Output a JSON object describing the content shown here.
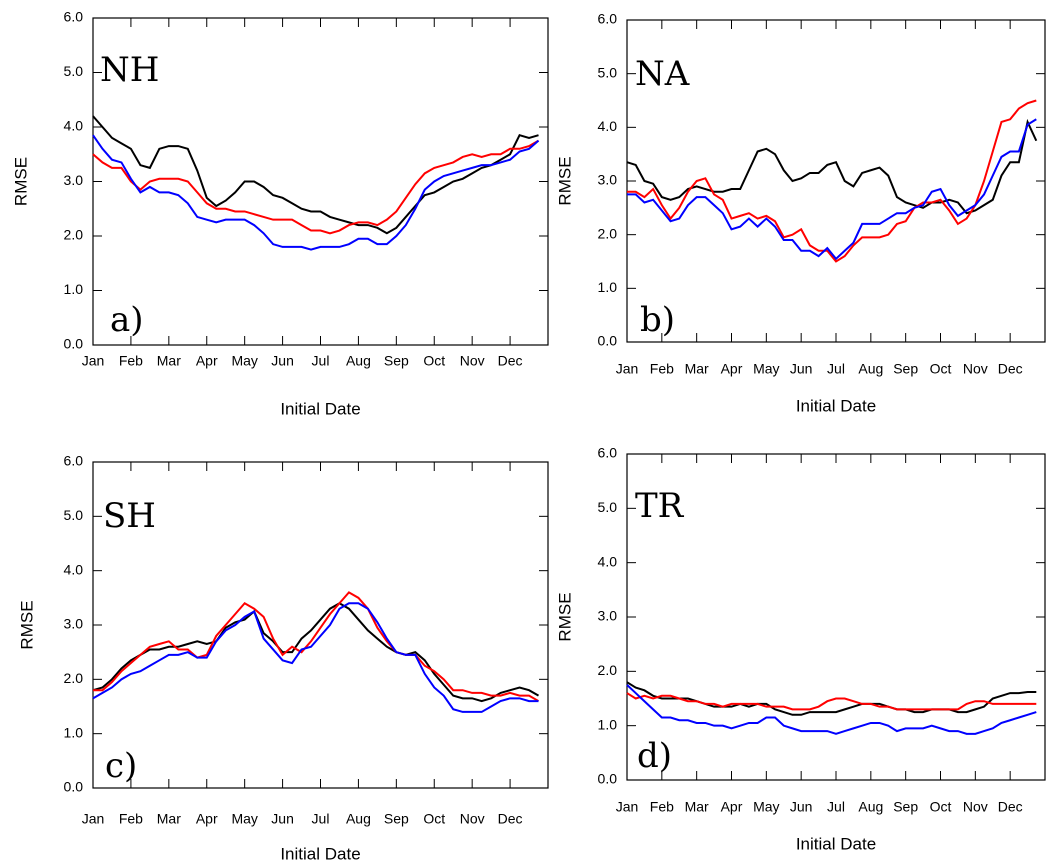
{
  "chart_data": [
    {
      "type": "line",
      "title": "NH",
      "panel_label": "a)",
      "ylabel": "RMSE",
      "xlabel": "Initial Date",
      "categories": [
        "Jan",
        null,
        null,
        null,
        "Feb",
        null,
        null,
        null,
        "Mar",
        null,
        null,
        null,
        "Apr",
        null,
        null,
        null,
        "May",
        null,
        null,
        null,
        "Jun",
        null,
        null,
        null,
        "Jul",
        null,
        null,
        null,
        "Aug",
        null,
        null,
        null,
        "Sep",
        null,
        null,
        null,
        "Oct",
        null,
        null,
        null,
        "Nov",
        null,
        null,
        null,
        "Dec",
        null,
        null,
        null
      ],
      "ylim": [
        0,
        6
      ],
      "yticks": [
        {
          "value": 0,
          "label": "0.0"
        },
        {
          "value": 1,
          "label": "1.0"
        },
        {
          "value": 2,
          "label": "2.0"
        },
        {
          "value": 3,
          "label": "3.0"
        },
        {
          "value": 4,
          "label": "4.0"
        },
        {
          "value": 5,
          "label": "5.0"
        },
        {
          "value": 6,
          "label": "6.0"
        }
      ],
      "series": [
        {
          "color": "#000000",
          "values": [
            4.2,
            4.0,
            3.8,
            3.7,
            3.6,
            3.3,
            3.25,
            3.6,
            3.65,
            3.65,
            3.6,
            3.2,
            2.7,
            2.55,
            2.65,
            2.8,
            3.0,
            3.0,
            2.9,
            2.75,
            2.7,
            2.6,
            2.5,
            2.45,
            2.45,
            2.35,
            2.3,
            2.25,
            2.2,
            2.2,
            2.15,
            2.05,
            2.15,
            2.35,
            2.55,
            2.75,
            2.8,
            2.9,
            3.0,
            3.05,
            3.15,
            3.25,
            3.3,
            3.4,
            3.5,
            3.85,
            3.8,
            3.85
          ]
        },
        {
          "color": "#ff0000",
          "values": [
            3.5,
            3.35,
            3.25,
            3.25,
            3.0,
            2.85,
            3.0,
            3.05,
            3.05,
            3.05,
            3.0,
            2.8,
            2.6,
            2.5,
            2.5,
            2.45,
            2.45,
            2.4,
            2.35,
            2.3,
            2.3,
            2.3,
            2.2,
            2.1,
            2.1,
            2.05,
            2.1,
            2.2,
            2.25,
            2.25,
            2.2,
            2.3,
            2.45,
            2.7,
            2.95,
            3.15,
            3.25,
            3.3,
            3.35,
            3.45,
            3.5,
            3.45,
            3.5,
            3.5,
            3.6,
            3.6,
            3.65,
            3.75
          ]
        },
        {
          "color": "#0000ff",
          "values": [
            3.85,
            3.6,
            3.4,
            3.35,
            3.05,
            2.8,
            2.9,
            2.8,
            2.8,
            2.75,
            2.6,
            2.35,
            2.3,
            2.25,
            2.3,
            2.3,
            2.3,
            2.2,
            2.05,
            1.85,
            1.8,
            1.8,
            1.8,
            1.75,
            1.8,
            1.8,
            1.8,
            1.85,
            1.95,
            1.95,
            1.85,
            1.85,
            2.0,
            2.2,
            2.5,
            2.85,
            3.0,
            3.1,
            3.15,
            3.2,
            3.25,
            3.3,
            3.3,
            3.35,
            3.4,
            3.55,
            3.6,
            3.75
          ]
        }
      ]
    },
    {
      "type": "line",
      "title": "NA",
      "panel_label": "b)",
      "ylabel": "RMSE",
      "xlabel": "Initial Date",
      "categories": [
        "Jan",
        null,
        null,
        null,
        "Feb",
        null,
        null,
        null,
        "Mar",
        null,
        null,
        null,
        "Apr",
        null,
        null,
        null,
        "May",
        null,
        null,
        null,
        "Jun",
        null,
        null,
        null,
        "Jul",
        null,
        null,
        null,
        "Aug",
        null,
        null,
        null,
        "Sep",
        null,
        null,
        null,
        "Oct",
        null,
        null,
        null,
        "Nov",
        null,
        null,
        null,
        "Dec",
        null,
        null,
        null
      ],
      "ylim": [
        0,
        6
      ],
      "yticks": [
        {
          "value": 0,
          "label": "0.0"
        },
        {
          "value": 1,
          "label": "1.0"
        },
        {
          "value": 2,
          "label": "2.0"
        },
        {
          "value": 3,
          "label": "3.0"
        },
        {
          "value": 4,
          "label": "4.0"
        },
        {
          "value": 5,
          "label": "5.0"
        },
        {
          "value": 6,
          "label": "6.0"
        }
      ],
      "series": [
        {
          "color": "#000000",
          "values": [
            3.35,
            3.3,
            3.0,
            2.95,
            2.7,
            2.65,
            2.7,
            2.85,
            2.9,
            2.85,
            2.8,
            2.8,
            2.85,
            2.85,
            3.2,
            3.55,
            3.6,
            3.5,
            3.2,
            3.0,
            3.05,
            3.15,
            3.15,
            3.3,
            3.35,
            3.0,
            2.9,
            3.15,
            3.2,
            3.25,
            3.1,
            2.7,
            2.6,
            2.55,
            2.5,
            2.6,
            2.6,
            2.65,
            2.6,
            2.4,
            2.45,
            2.55,
            2.65,
            3.1,
            3.35,
            3.35,
            4.1,
            3.75
          ]
        },
        {
          "color": "#ff0000",
          "values": [
            2.8,
            2.8,
            2.7,
            2.85,
            2.55,
            2.3,
            2.5,
            2.8,
            3.0,
            3.05,
            2.75,
            2.65,
            2.3,
            2.35,
            2.4,
            2.3,
            2.35,
            2.25,
            1.95,
            2.0,
            2.1,
            1.8,
            1.7,
            1.7,
            1.5,
            1.6,
            1.8,
            1.95,
            1.95,
            1.95,
            2.0,
            2.2,
            2.25,
            2.5,
            2.6,
            2.6,
            2.65,
            2.45,
            2.2,
            2.3,
            2.55,
            3.0,
            3.55,
            4.1,
            4.15,
            4.35,
            4.45,
            4.5
          ]
        },
        {
          "color": "#0000ff",
          "values": [
            2.75,
            2.75,
            2.6,
            2.65,
            2.45,
            2.25,
            2.3,
            2.55,
            2.7,
            2.7,
            2.55,
            2.4,
            2.1,
            2.15,
            2.3,
            2.15,
            2.3,
            2.15,
            1.9,
            1.9,
            1.7,
            1.7,
            1.6,
            1.75,
            1.55,
            1.7,
            1.85,
            2.2,
            2.2,
            2.2,
            2.3,
            2.4,
            2.4,
            2.5,
            2.55,
            2.8,
            2.85,
            2.55,
            2.35,
            2.45,
            2.55,
            2.75,
            3.1,
            3.45,
            3.55,
            3.55,
            4.05,
            4.15
          ]
        }
      ]
    },
    {
      "type": "line",
      "title": "SH",
      "panel_label": "c)",
      "ylabel": "RMSE",
      "xlabel": "Initial Date",
      "categories": [
        "Jan",
        null,
        null,
        null,
        "Feb",
        null,
        null,
        null,
        "Mar",
        null,
        null,
        null,
        "Apr",
        null,
        null,
        null,
        "May",
        null,
        null,
        null,
        "Jun",
        null,
        null,
        null,
        "Jul",
        null,
        null,
        null,
        "Aug",
        null,
        null,
        null,
        "Sep",
        null,
        null,
        null,
        "Oct",
        null,
        null,
        null,
        "Nov",
        null,
        null,
        null,
        "Dec",
        null,
        null,
        null
      ],
      "ylim": [
        0,
        6
      ],
      "yticks": [
        {
          "value": 0,
          "label": "0.0"
        },
        {
          "value": 1,
          "label": "1.0"
        },
        {
          "value": 2,
          "label": "2.0"
        },
        {
          "value": 3,
          "label": "3.0"
        },
        {
          "value": 4,
          "label": "4.0"
        },
        {
          "value": 5,
          "label": "5.0"
        },
        {
          "value": 6,
          "label": "6.0"
        }
      ],
      "series": [
        {
          "color": "#000000",
          "values": [
            1.8,
            1.85,
            2.0,
            2.2,
            2.35,
            2.45,
            2.55,
            2.55,
            2.6,
            2.6,
            2.65,
            2.7,
            2.65,
            2.7,
            2.95,
            3.05,
            3.1,
            3.25,
            2.85,
            2.7,
            2.5,
            2.5,
            2.75,
            2.9,
            3.1,
            3.3,
            3.4,
            3.3,
            3.1,
            2.9,
            2.75,
            2.6,
            2.5,
            2.45,
            2.5,
            2.35,
            2.1,
            1.9,
            1.7,
            1.65,
            1.65,
            1.6,
            1.65,
            1.75,
            1.8,
            1.85,
            1.8,
            1.7
          ]
        },
        {
          "color": "#ff0000",
          "values": [
            1.8,
            1.8,
            1.95,
            2.15,
            2.3,
            2.45,
            2.6,
            2.65,
            2.7,
            2.55,
            2.55,
            2.4,
            2.45,
            2.8,
            3.0,
            3.2,
            3.4,
            3.3,
            3.15,
            2.75,
            2.45,
            2.6,
            2.5,
            2.7,
            2.95,
            3.2,
            3.4,
            3.6,
            3.5,
            3.3,
            2.95,
            2.7,
            2.5,
            2.45,
            2.45,
            2.25,
            2.15,
            2.0,
            1.8,
            1.8,
            1.75,
            1.75,
            1.7,
            1.7,
            1.75,
            1.7,
            1.7,
            1.6
          ]
        },
        {
          "color": "#0000ff",
          "values": [
            1.65,
            1.75,
            1.85,
            2.0,
            2.1,
            2.15,
            2.25,
            2.35,
            2.45,
            2.45,
            2.5,
            2.4,
            2.4,
            2.7,
            2.9,
            3.0,
            3.15,
            3.25,
            2.75,
            2.55,
            2.35,
            2.3,
            2.55,
            2.6,
            2.8,
            3.0,
            3.3,
            3.4,
            3.4,
            3.3,
            3.05,
            2.75,
            2.5,
            2.45,
            2.45,
            2.1,
            1.85,
            1.7,
            1.45,
            1.4,
            1.4,
            1.4,
            1.5,
            1.6,
            1.65,
            1.65,
            1.6,
            1.6
          ]
        }
      ]
    },
    {
      "type": "line",
      "title": "TR",
      "panel_label": "d)",
      "ylabel": "RMSE",
      "xlabel": "Initial Date",
      "categories": [
        "Jan",
        null,
        null,
        null,
        "Feb",
        null,
        null,
        null,
        "Mar",
        null,
        null,
        null,
        "Apr",
        null,
        null,
        null,
        "May",
        null,
        null,
        null,
        "Jun",
        null,
        null,
        null,
        "Jul",
        null,
        null,
        null,
        "Aug",
        null,
        null,
        null,
        "Sep",
        null,
        null,
        null,
        "Oct",
        null,
        null,
        null,
        "Nov",
        null,
        null,
        null,
        "Dec",
        null,
        null,
        null
      ],
      "ylim": [
        0,
        6
      ],
      "yticks": [
        {
          "value": 0,
          "label": "0.0"
        },
        {
          "value": 1,
          "label": "1.0"
        },
        {
          "value": 2,
          "label": "2.0"
        },
        {
          "value": 3,
          "label": "3.0"
        },
        {
          "value": 4,
          "label": "4.0"
        },
        {
          "value": 5,
          "label": "5.0"
        },
        {
          "value": 6,
          "label": "6.0"
        }
      ],
      "series": [
        {
          "color": "#000000",
          "values": [
            1.8,
            1.7,
            1.65,
            1.55,
            1.5,
            1.5,
            1.5,
            1.5,
            1.45,
            1.4,
            1.35,
            1.35,
            1.35,
            1.4,
            1.35,
            1.4,
            1.4,
            1.3,
            1.25,
            1.2,
            1.2,
            1.25,
            1.25,
            1.25,
            1.25,
            1.3,
            1.35,
            1.4,
            1.4,
            1.4,
            1.35,
            1.3,
            1.3,
            1.25,
            1.25,
            1.3,
            1.3,
            1.3,
            1.25,
            1.25,
            1.3,
            1.35,
            1.5,
            1.55,
            1.6,
            1.6,
            1.62,
            1.62
          ]
        },
        {
          "color": "#ff0000",
          "values": [
            1.6,
            1.5,
            1.55,
            1.5,
            1.55,
            1.55,
            1.5,
            1.45,
            1.45,
            1.4,
            1.4,
            1.35,
            1.4,
            1.4,
            1.4,
            1.4,
            1.35,
            1.35,
            1.35,
            1.3,
            1.3,
            1.3,
            1.35,
            1.45,
            1.5,
            1.5,
            1.45,
            1.4,
            1.4,
            1.35,
            1.35,
            1.3,
            1.3,
            1.3,
            1.3,
            1.3,
            1.3,
            1.3,
            1.3,
            1.4,
            1.45,
            1.45,
            1.4,
            1.4,
            1.4,
            1.4,
            1.4,
            1.4
          ]
        },
        {
          "color": "#0000ff",
          "values": [
            1.75,
            1.6,
            1.45,
            1.3,
            1.15,
            1.15,
            1.1,
            1.1,
            1.05,
            1.05,
            1.0,
            1.0,
            0.95,
            1.0,
            1.05,
            1.05,
            1.15,
            1.15,
            1.0,
            0.95,
            0.9,
            0.9,
            0.9,
            0.9,
            0.85,
            0.9,
            0.95,
            1.0,
            1.05,
            1.05,
            1.0,
            0.9,
            0.95,
            0.95,
            0.95,
            1.0,
            0.95,
            0.9,
            0.9,
            0.85,
            0.85,
            0.9,
            0.95,
            1.05,
            1.1,
            1.15,
            1.2,
            1.25
          ]
        }
      ]
    }
  ]
}
